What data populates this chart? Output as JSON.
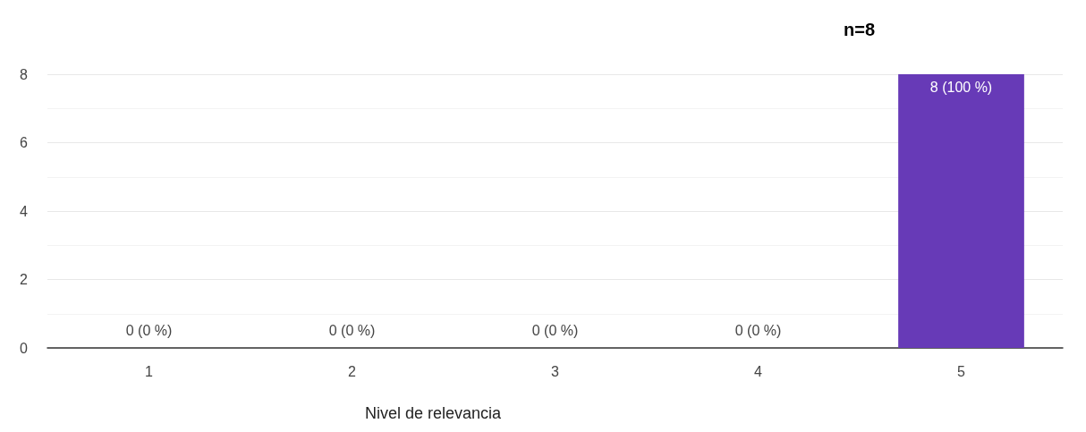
{
  "chart_data": {
    "type": "bar",
    "title": "n=8",
    "xlabel": "Nivel de relevancia",
    "categories": [
      "1",
      "2",
      "3",
      "4",
      "5"
    ],
    "values": [
      0,
      0,
      0,
      0,
      8
    ],
    "value_labels": [
      "0 (0 %)",
      "0 (0 %)",
      "0 (0 %)",
      "0 (0 %)",
      "8 (100 %)"
    ],
    "color": "#673ab7",
    "ylim": [
      0,
      8
    ],
    "yticks": [
      0,
      {
        "value": 1,
        "label": null
      },
      2,
      {
        "value": 3,
        "label": null
      },
      4,
      {
        "value": 5,
        "label": null
      },
      6,
      {
        "value": 7,
        "label": null
      },
      8
    ],
    "grid": "y"
  }
}
